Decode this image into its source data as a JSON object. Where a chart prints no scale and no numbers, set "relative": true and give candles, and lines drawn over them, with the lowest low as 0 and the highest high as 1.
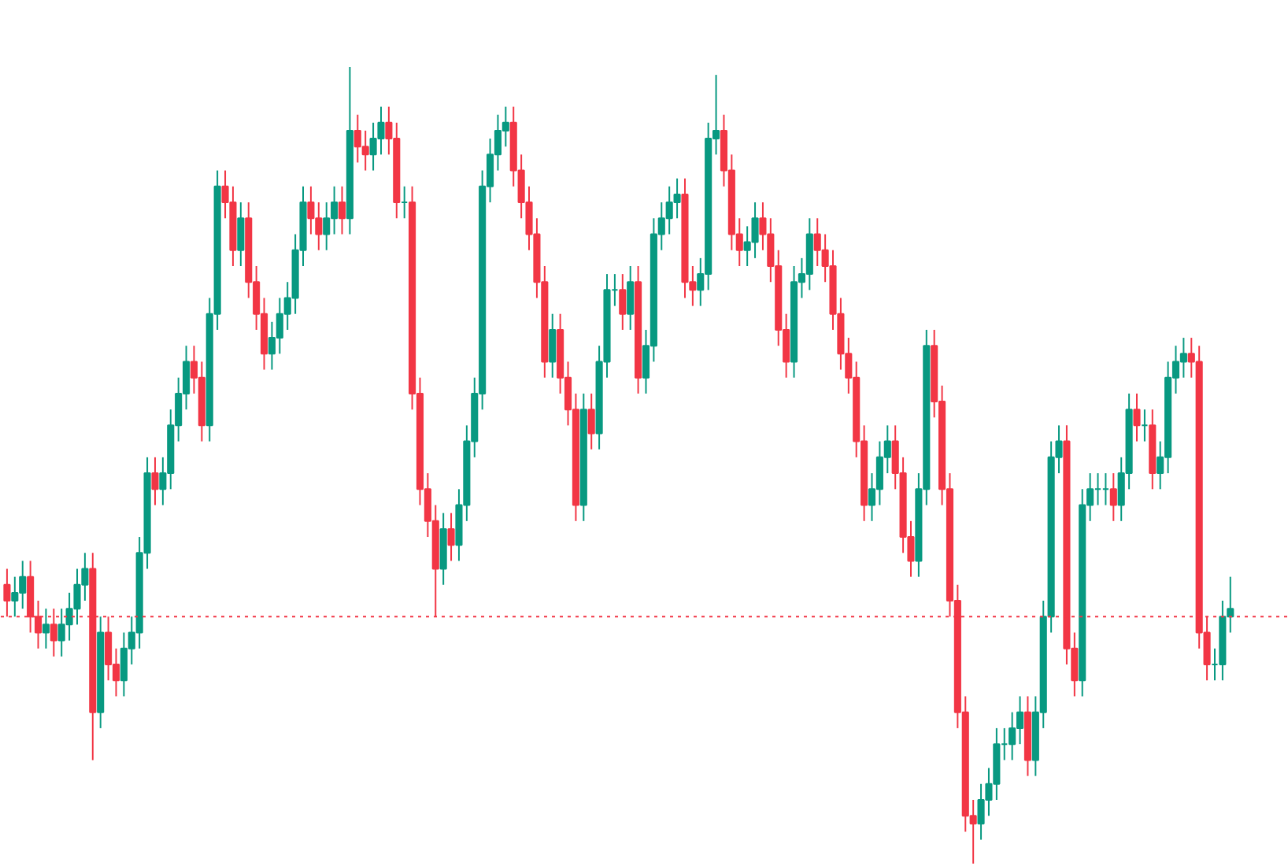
{
  "chart_data": {
    "type": "candlestick",
    "relative": true,
    "grid": false,
    "categories": [
      null,
      null,
      null,
      null,
      null,
      null,
      null,
      null,
      null,
      null,
      null,
      null,
      null,
      null,
      null,
      null,
      null,
      null,
      null,
      null,
      null,
      null,
      null,
      null,
      null,
      null,
      null,
      null,
      null,
      null,
      null,
      null,
      null,
      null,
      null,
      null,
      null,
      null,
      null,
      null,
      null,
      null,
      null,
      null,
      null,
      null,
      null,
      null,
      null,
      null,
      null,
      null,
      null,
      null,
      null,
      null,
      null,
      null,
      null,
      null,
      null,
      null,
      null,
      null,
      null,
      null,
      null,
      null,
      null,
      null,
      null,
      null,
      null,
      null,
      null,
      null,
      null,
      null,
      null,
      null,
      null,
      null,
      null,
      null,
      null,
      null,
      null,
      null,
      null,
      null,
      null,
      null,
      null,
      null,
      null,
      null,
      null,
      null,
      null,
      null,
      null,
      null,
      null,
      null,
      null,
      null,
      null,
      null,
      null,
      null,
      null,
      null,
      null,
      null,
      null,
      null,
      null,
      null,
      null,
      null,
      null,
      null,
      null,
      null,
      null,
      null,
      null,
      null,
      null,
      null,
      null,
      null,
      null,
      null,
      null,
      null,
      null,
      null,
      null,
      null,
      null,
      null,
      null,
      null,
      null,
      null,
      null,
      null,
      null,
      null,
      null,
      null,
      null,
      null,
      null,
      null,
      null,
      null
    ],
    "ohlc": [
      [
        0.35,
        0.37,
        0.31,
        0.33
      ],
      [
        0.33,
        0.36,
        0.31,
        0.34
      ],
      [
        0.34,
        0.38,
        0.32,
        0.36
      ],
      [
        0.36,
        0.38,
        0.29,
        0.31
      ],
      [
        0.31,
        0.33,
        0.27,
        0.29
      ],
      [
        0.29,
        0.32,
        0.27,
        0.3
      ],
      [
        0.3,
        0.32,
        0.26,
        0.28
      ],
      [
        0.28,
        0.32,
        0.26,
        0.3
      ],
      [
        0.3,
        0.34,
        0.28,
        0.32
      ],
      [
        0.32,
        0.37,
        0.3,
        0.35
      ],
      [
        0.35,
        0.39,
        0.33,
        0.37
      ],
      [
        0.37,
        0.39,
        0.13,
        0.19
      ],
      [
        0.19,
        0.31,
        0.17,
        0.29
      ],
      [
        0.29,
        0.31,
        0.23,
        0.25
      ],
      [
        0.25,
        0.27,
        0.21,
        0.23
      ],
      [
        0.23,
        0.29,
        0.21,
        0.27
      ],
      [
        0.27,
        0.31,
        0.25,
        0.29
      ],
      [
        0.29,
        0.41,
        0.27,
        0.39
      ],
      [
        0.39,
        0.51,
        0.37,
        0.49
      ],
      [
        0.49,
        0.51,
        0.45,
        0.47
      ],
      [
        0.47,
        0.51,
        0.45,
        0.49
      ],
      [
        0.49,
        0.57,
        0.47,
        0.55
      ],
      [
        0.55,
        0.61,
        0.53,
        0.59
      ],
      [
        0.59,
        0.65,
        0.57,
        0.63
      ],
      [
        0.63,
        0.65,
        0.59,
        0.61
      ],
      [
        0.61,
        0.63,
        0.53,
        0.55
      ],
      [
        0.55,
        0.71,
        0.53,
        0.69
      ],
      [
        0.69,
        0.87,
        0.67,
        0.85
      ],
      [
        0.85,
        0.87,
        0.81,
        0.83
      ],
      [
        0.83,
        0.85,
        0.75,
        0.77
      ],
      [
        0.77,
        0.83,
        0.75,
        0.81
      ],
      [
        0.81,
        0.83,
        0.71,
        0.73
      ],
      [
        0.73,
        0.75,
        0.67,
        0.69
      ],
      [
        0.69,
        0.71,
        0.62,
        0.64
      ],
      [
        0.64,
        0.68,
        0.62,
        0.66
      ],
      [
        0.66,
        0.71,
        0.64,
        0.69
      ],
      [
        0.69,
        0.73,
        0.67,
        0.71
      ],
      [
        0.71,
        0.79,
        0.69,
        0.77
      ],
      [
        0.77,
        0.85,
        0.75,
        0.83
      ],
      [
        0.83,
        0.85,
        0.79,
        0.81
      ],
      [
        0.81,
        0.83,
        0.77,
        0.79
      ],
      [
        0.79,
        0.83,
        0.77,
        0.81
      ],
      [
        0.81,
        0.85,
        0.79,
        0.83
      ],
      [
        0.83,
        0.85,
        0.79,
        0.81
      ],
      [
        0.81,
        1.0,
        0.79,
        0.92
      ],
      [
        0.92,
        0.94,
        0.88,
        0.9
      ],
      [
        0.9,
        0.92,
        0.87,
        0.89
      ],
      [
        0.89,
        0.93,
        0.87,
        0.91
      ],
      [
        0.91,
        0.95,
        0.89,
        0.93
      ],
      [
        0.93,
        0.95,
        0.89,
        0.91
      ],
      [
        0.91,
        0.93,
        0.81,
        0.83
      ],
      [
        0.83,
        0.85,
        0.81,
        0.83
      ],
      [
        0.83,
        0.85,
        0.57,
        0.59
      ],
      [
        0.59,
        0.61,
        0.45,
        0.47
      ],
      [
        0.47,
        0.49,
        0.41,
        0.43
      ],
      [
        0.43,
        0.45,
        0.31,
        0.37
      ],
      [
        0.37,
        0.44,
        0.35,
        0.42
      ],
      [
        0.42,
        0.44,
        0.38,
        0.4
      ],
      [
        0.4,
        0.47,
        0.38,
        0.45
      ],
      [
        0.45,
        0.55,
        0.43,
        0.53
      ],
      [
        0.53,
        0.61,
        0.51,
        0.59
      ],
      [
        0.59,
        0.87,
        0.57,
        0.85
      ],
      [
        0.85,
        0.91,
        0.83,
        0.89
      ],
      [
        0.89,
        0.94,
        0.87,
        0.92
      ],
      [
        0.92,
        0.95,
        0.9,
        0.93
      ],
      [
        0.93,
        0.95,
        0.85,
        0.87
      ],
      [
        0.87,
        0.89,
        0.81,
        0.83
      ],
      [
        0.83,
        0.85,
        0.77,
        0.79
      ],
      [
        0.79,
        0.81,
        0.71,
        0.73
      ],
      [
        0.73,
        0.75,
        0.61,
        0.63
      ],
      [
        0.63,
        0.69,
        0.61,
        0.67
      ],
      [
        0.67,
        0.69,
        0.59,
        0.61
      ],
      [
        0.61,
        0.63,
        0.55,
        0.57
      ],
      [
        0.57,
        0.59,
        0.43,
        0.45
      ],
      [
        0.45,
        0.59,
        0.43,
        0.57
      ],
      [
        0.57,
        0.59,
        0.52,
        0.54
      ],
      [
        0.54,
        0.65,
        0.52,
        0.63
      ],
      [
        0.63,
        0.74,
        0.61,
        0.72
      ],
      [
        0.72,
        0.74,
        0.7,
        0.72
      ],
      [
        0.72,
        0.74,
        0.67,
        0.69
      ],
      [
        0.69,
        0.75,
        0.67,
        0.73
      ],
      [
        0.73,
        0.75,
        0.59,
        0.61
      ],
      [
        0.61,
        0.67,
        0.59,
        0.65
      ],
      [
        0.65,
        0.81,
        0.63,
        0.79
      ],
      [
        0.79,
        0.83,
        0.77,
        0.81
      ],
      [
        0.81,
        0.85,
        0.79,
        0.83
      ],
      [
        0.83,
        0.86,
        0.81,
        0.84
      ],
      [
        0.84,
        0.86,
        0.71,
        0.73
      ],
      [
        0.73,
        0.75,
        0.7,
        0.72
      ],
      [
        0.72,
        0.76,
        0.7,
        0.74
      ],
      [
        0.74,
        0.93,
        0.72,
        0.91
      ],
      [
        0.91,
        0.99,
        0.89,
        0.92
      ],
      [
        0.92,
        0.94,
        0.85,
        0.87
      ],
      [
        0.87,
        0.89,
        0.77,
        0.79
      ],
      [
        0.79,
        0.81,
        0.75,
        0.77
      ],
      [
        0.77,
        0.8,
        0.75,
        0.78
      ],
      [
        0.78,
        0.83,
        0.76,
        0.81
      ],
      [
        0.81,
        0.83,
        0.77,
        0.79
      ],
      [
        0.79,
        0.81,
        0.73,
        0.75
      ],
      [
        0.75,
        0.77,
        0.65,
        0.67
      ],
      [
        0.67,
        0.69,
        0.61,
        0.63
      ],
      [
        0.63,
        0.75,
        0.61,
        0.73
      ],
      [
        0.73,
        0.76,
        0.71,
        0.74
      ],
      [
        0.74,
        0.81,
        0.72,
        0.79
      ],
      [
        0.79,
        0.81,
        0.75,
        0.77
      ],
      [
        0.77,
        0.79,
        0.73,
        0.75
      ],
      [
        0.75,
        0.77,
        0.67,
        0.69
      ],
      [
        0.69,
        0.71,
        0.62,
        0.64
      ],
      [
        0.64,
        0.66,
        0.59,
        0.61
      ],
      [
        0.61,
        0.63,
        0.51,
        0.53
      ],
      [
        0.53,
        0.55,
        0.43,
        0.45
      ],
      [
        0.45,
        0.49,
        0.43,
        0.47
      ],
      [
        0.47,
        0.53,
        0.45,
        0.51
      ],
      [
        0.51,
        0.55,
        0.49,
        0.53
      ],
      [
        0.53,
        0.55,
        0.47,
        0.49
      ],
      [
        0.49,
        0.51,
        0.39,
        0.41
      ],
      [
        0.41,
        0.43,
        0.36,
        0.38
      ],
      [
        0.38,
        0.49,
        0.36,
        0.47
      ],
      [
        0.47,
        0.67,
        0.45,
        0.65
      ],
      [
        0.65,
        0.67,
        0.56,
        0.58
      ],
      [
        0.58,
        0.6,
        0.45,
        0.47
      ],
      [
        0.47,
        0.49,
        0.31,
        0.33
      ],
      [
        0.33,
        0.35,
        0.17,
        0.19
      ],
      [
        0.19,
        0.21,
        0.04,
        0.06
      ],
      [
        0.06,
        0.08,
        0.0,
        0.05
      ],
      [
        0.05,
        0.1,
        0.03,
        0.08
      ],
      [
        0.08,
        0.12,
        0.06,
        0.1
      ],
      [
        0.1,
        0.17,
        0.08,
        0.15
      ],
      [
        0.15,
        0.17,
        0.13,
        0.15
      ],
      [
        0.15,
        0.19,
        0.13,
        0.17
      ],
      [
        0.17,
        0.21,
        0.15,
        0.19
      ],
      [
        0.19,
        0.21,
        0.11,
        0.13
      ],
      [
        0.13,
        0.21,
        0.11,
        0.19
      ],
      [
        0.19,
        0.33,
        0.17,
        0.31
      ],
      [
        0.31,
        0.53,
        0.29,
        0.51
      ],
      [
        0.51,
        0.55,
        0.49,
        0.53
      ],
      [
        0.53,
        0.55,
        0.25,
        0.27
      ],
      [
        0.27,
        0.29,
        0.21,
        0.23
      ],
      [
        0.23,
        0.47,
        0.21,
        0.45
      ],
      [
        0.45,
        0.49,
        0.43,
        0.47
      ],
      [
        0.47,
        0.49,
        0.45,
        0.47
      ],
      [
        0.47,
        0.49,
        0.45,
        0.47
      ],
      [
        0.47,
        0.49,
        0.43,
        0.45
      ],
      [
        0.45,
        0.51,
        0.43,
        0.49
      ],
      [
        0.49,
        0.59,
        0.47,
        0.57
      ],
      [
        0.57,
        0.59,
        0.53,
        0.55
      ],
      [
        0.55,
        0.57,
        0.53,
        0.55
      ],
      [
        0.55,
        0.57,
        0.47,
        0.49
      ],
      [
        0.49,
        0.53,
        0.47,
        0.51
      ],
      [
        0.51,
        0.63,
        0.49,
        0.61
      ],
      [
        0.61,
        0.65,
        0.59,
        0.63
      ],
      [
        0.63,
        0.66,
        0.61,
        0.64
      ],
      [
        0.64,
        0.66,
        0.61,
        0.63
      ],
      [
        0.63,
        0.65,
        0.27,
        0.29
      ],
      [
        0.29,
        0.31,
        0.23,
        0.25
      ],
      [
        0.25,
        0.27,
        0.23,
        0.25
      ],
      [
        0.25,
        0.33,
        0.23,
        0.31
      ],
      [
        0.31,
        0.36,
        0.29,
        0.32
      ]
    ],
    "colors": [
      "#f23645",
      "#089981",
      "#089981",
      "#f23645",
      "#f23645",
      "#089981",
      "#f23645",
      "#089981",
      "#089981",
      "#089981",
      "#089981",
      "#f23645",
      "#089981",
      "#f23645",
      "#f23645",
      "#089981",
      "#089981",
      "#089981",
      "#089981",
      "#f23645",
      "#089981",
      "#089981",
      "#089981",
      "#089981",
      "#f23645",
      "#f23645",
      "#089981",
      "#089981",
      "#f23645",
      "#f23645",
      "#089981",
      "#f23645",
      "#f23645",
      "#f23645",
      "#089981",
      "#089981",
      "#089981",
      "#089981",
      "#089981",
      "#f23645",
      "#f23645",
      "#089981",
      "#089981",
      "#f23645",
      "#089981",
      "#f23645",
      "#f23645",
      "#089981",
      "#089981",
      "#f23645",
      "#f23645",
      "#089981",
      "#f23645",
      "#f23645",
      "#f23645",
      "#f23645",
      "#089981",
      "#f23645",
      "#089981",
      "#089981",
      "#089981",
      "#089981",
      "#089981",
      "#089981",
      "#089981",
      "#f23645",
      "#f23645",
      "#f23645",
      "#f23645",
      "#f23645",
      "#089981",
      "#f23645",
      "#f23645",
      "#f23645",
      "#089981",
      "#f23645",
      "#089981",
      "#089981",
      "#089981",
      "#f23645",
      "#089981",
      "#f23645",
      "#089981",
      "#089981",
      "#089981",
      "#089981",
      "#089981",
      "#f23645",
      "#f23645",
      "#089981",
      "#089981",
      "#089981",
      "#f23645",
      "#f23645",
      "#f23645",
      "#089981",
      "#089981",
      "#f23645",
      "#f23645",
      "#f23645",
      "#f23645",
      "#089981",
      "#089981",
      "#089981",
      "#f23645",
      "#f23645",
      "#f23645",
      "#f23645",
      "#f23645",
      "#f23645",
      "#f23645",
      "#089981",
      "#089981",
      "#089981",
      "#f23645",
      "#f23645",
      "#f23645",
      "#089981",
      "#089981",
      "#f23645",
      "#f23645",
      "#f23645",
      "#f23645",
      "#f23645",
      "#f23645",
      "#089981",
      "#089981",
      "#089981",
      "#089981",
      "#089981",
      "#089981",
      "#f23645",
      "#089981",
      "#089981",
      "#089981",
      "#089981",
      "#f23645",
      "#f23645",
      "#089981",
      "#089981",
      "#089981",
      "#089981",
      "#f23645",
      "#089981",
      "#089981",
      "#f23645",
      "#089981",
      "#f23645",
      "#089981",
      "#089981",
      "#089981",
      "#089981",
      "#f23645",
      "#f23645",
      "#f23645",
      "#089981",
      "#089981",
      "#089981"
    ],
    "ref_lines": [
      {
        "axis": "y",
        "value": 0.31,
        "color": "#f23645",
        "line_style": "dotted"
      }
    ]
  }
}
